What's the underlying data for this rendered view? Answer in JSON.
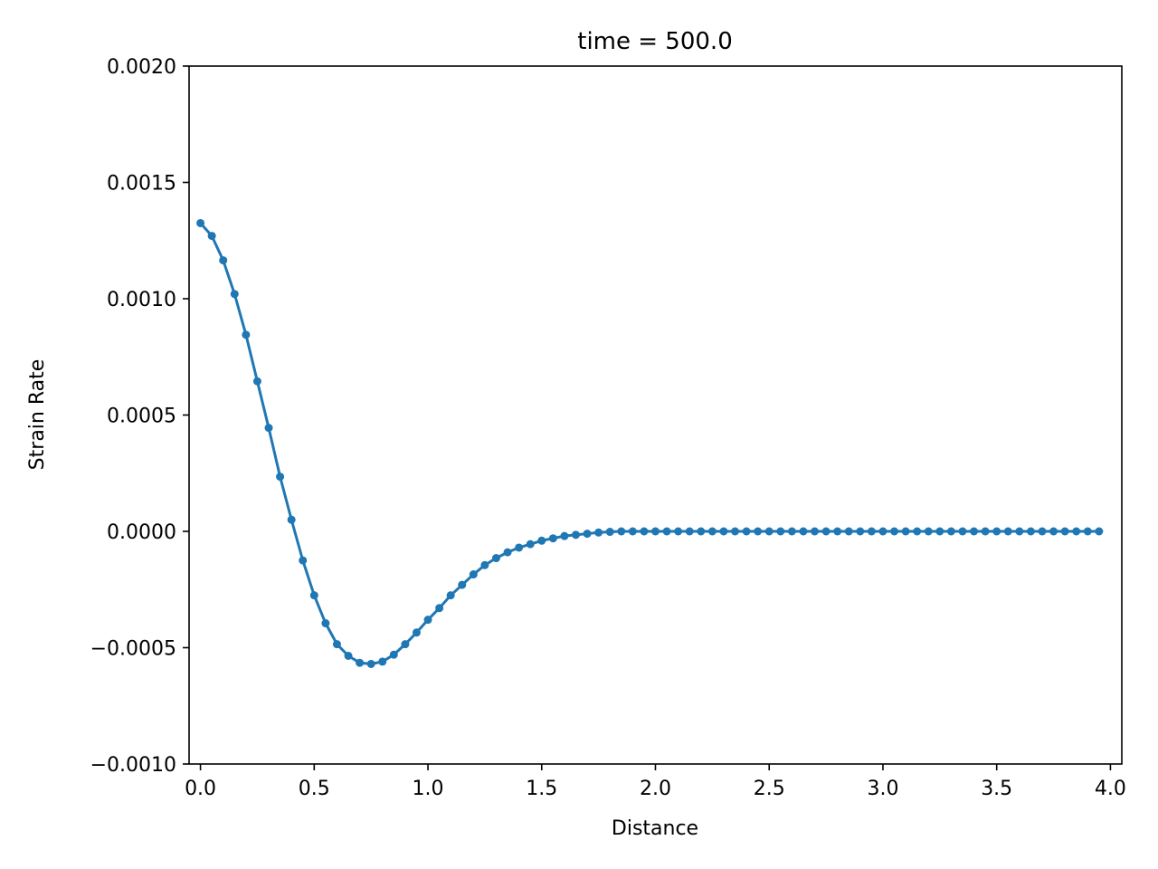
{
  "chart_data": {
    "type": "line",
    "title": "time = 500.0",
    "xlabel": "Distance",
    "ylabel": "Strain Rate",
    "xlim": [
      -0.05,
      4.05
    ],
    "ylim": [
      -0.001,
      0.002
    ],
    "xticks": [
      0.0,
      0.5,
      1.0,
      1.5,
      2.0,
      2.5,
      3.0,
      3.5,
      4.0
    ],
    "xtick_labels": [
      "0.0",
      "0.5",
      "1.0",
      "1.5",
      "2.0",
      "2.5",
      "3.0",
      "3.5",
      "4.0"
    ],
    "yticks": [
      -0.001,
      -0.0005,
      0.0,
      0.0005,
      0.001,
      0.0015,
      0.002
    ],
    "ytick_labels": [
      "−0.0010",
      "−0.0005",
      "0.0000",
      "0.0005",
      "0.0010",
      "0.0015",
      "0.0020"
    ],
    "grid": false,
    "series": [
      {
        "color": "#1f77b4",
        "marker": "circle",
        "x": [
          0.0,
          0.05,
          0.1,
          0.15,
          0.2,
          0.25,
          0.3,
          0.35,
          0.4,
          0.45,
          0.5,
          0.55,
          0.6,
          0.65,
          0.7,
          0.75,
          0.8,
          0.85,
          0.9,
          0.95,
          1.0,
          1.05,
          1.1,
          1.15,
          1.2,
          1.25,
          1.3,
          1.35,
          1.4,
          1.45,
          1.5,
          1.55,
          1.6,
          1.65,
          1.7,
          1.75,
          1.8,
          1.85,
          1.9,
          1.95,
          2.0,
          2.05,
          2.1,
          2.15,
          2.2,
          2.25,
          2.3,
          2.35,
          2.4,
          2.45,
          2.5,
          2.55,
          2.6,
          2.65,
          2.7,
          2.75,
          2.8,
          2.85,
          2.9,
          2.95,
          3.0,
          3.05,
          3.1,
          3.15,
          3.2,
          3.25,
          3.3,
          3.35,
          3.4,
          3.45,
          3.5,
          3.55,
          3.6,
          3.65,
          3.7,
          3.75,
          3.8,
          3.85,
          3.9,
          3.95
        ],
        "y": [
          0.001325,
          0.00127,
          0.001165,
          0.00102,
          0.000845,
          0.000645,
          0.000445,
          0.000235,
          5e-05,
          -0.000125,
          -0.000275,
          -0.000395,
          -0.000485,
          -0.000535,
          -0.000565,
          -0.00057,
          -0.00056,
          -0.00053,
          -0.000485,
          -0.000435,
          -0.00038,
          -0.00033,
          -0.000275,
          -0.00023,
          -0.000185,
          -0.000145,
          -0.000115,
          -9e-05,
          -7e-05,
          -5.5e-05,
          -4e-05,
          -3e-05,
          -2e-05,
          -1.5e-05,
          -1e-05,
          -5e-06,
          -2e-06,
          0.0,
          0.0,
          0.0,
          0.0,
          0.0,
          0.0,
          0.0,
          0.0,
          0.0,
          0.0,
          0.0,
          0.0,
          0.0,
          0.0,
          0.0,
          0.0,
          0.0,
          0.0,
          0.0,
          0.0,
          0.0,
          0.0,
          0.0,
          0.0,
          0.0,
          0.0,
          0.0,
          0.0,
          0.0,
          0.0,
          0.0,
          0.0,
          0.0,
          0.0,
          0.0,
          0.0,
          0.0,
          0.0,
          0.0,
          0.0,
          0.0,
          0.0,
          0.0
        ]
      }
    ]
  }
}
